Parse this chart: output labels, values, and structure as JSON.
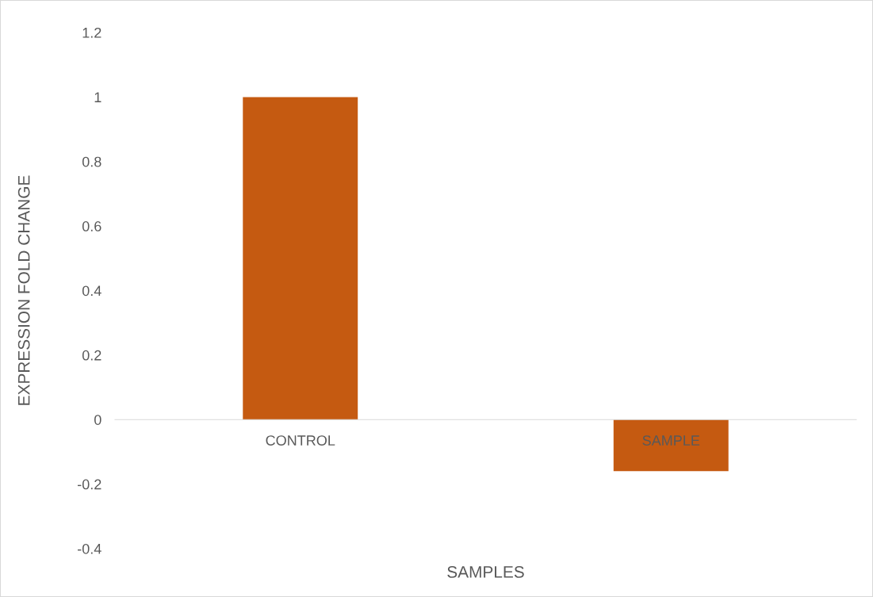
{
  "chart_data": {
    "type": "bar",
    "xlabel": "SAMPLES",
    "ylabel": "EXPRESSION FOLD CHANGE",
    "categories": [
      "CONTROL",
      "SAMPLE"
    ],
    "values": [
      1,
      -0.16
    ],
    "color": "#c55a11",
    "ylim": [
      -0.4,
      1.2
    ],
    "yticks": [
      -0.4,
      -0.2,
      0,
      0.2,
      0.4,
      0.6,
      0.8,
      1,
      1.2
    ],
    "legend": false
  }
}
